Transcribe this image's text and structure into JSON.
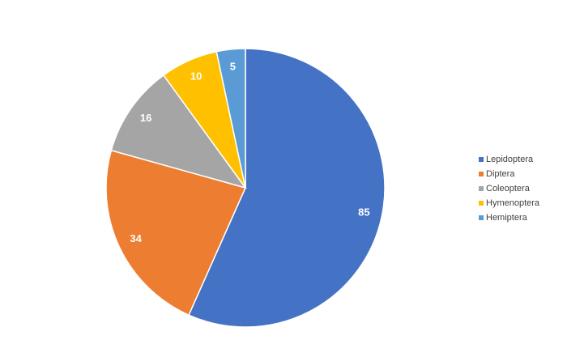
{
  "chart_data": {
    "type": "pie",
    "categories": [
      "Lepidoptera",
      "Diptera",
      "Coleoptera",
      "Hymenoptera",
      "Hemiptera"
    ],
    "values": [
      85,
      34,
      16,
      10,
      5
    ],
    "colors": [
      "#4472c4",
      "#ed7d31",
      "#a5a5a5",
      "#ffc000",
      "#5b9bd5"
    ],
    "legend": "right"
  }
}
